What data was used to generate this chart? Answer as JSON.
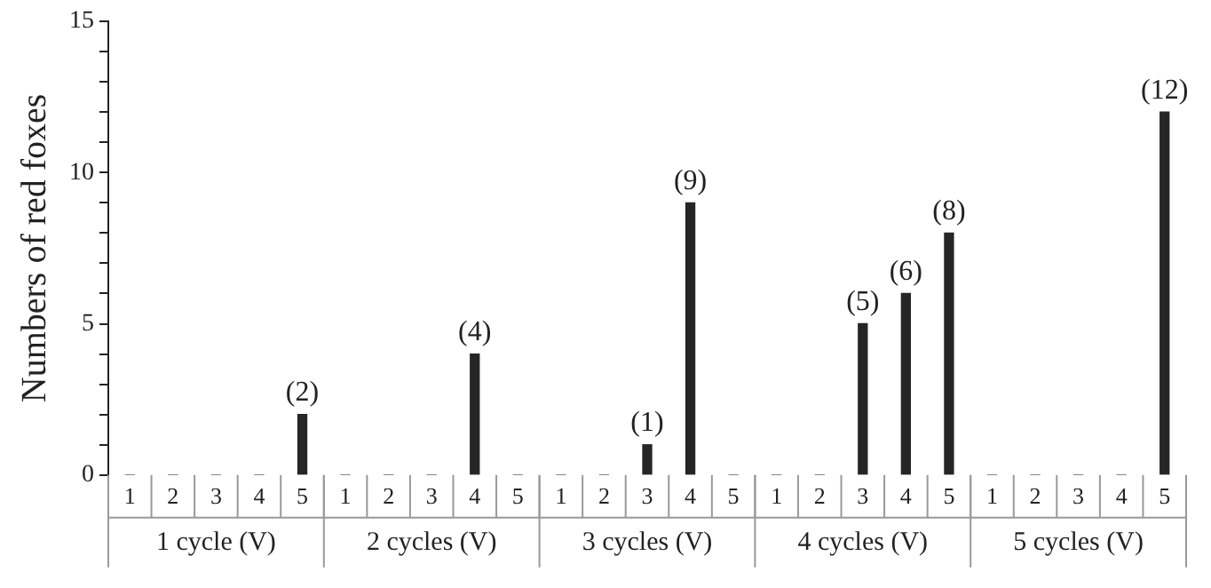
{
  "chart_data": {
    "type": "bar",
    "ylabel": "Numbers of red foxes",
    "categories": [
      "1",
      "2",
      "3",
      "4",
      "5",
      "1",
      "2",
      "3",
      "4",
      "5",
      "1",
      "2",
      "3",
      "4",
      "5",
      "1",
      "2",
      "3",
      "4",
      "5",
      "1",
      "2",
      "3",
      "4",
      "5"
    ],
    "values": [
      0,
      0,
      0,
      0,
      2,
      0,
      0,
      0,
      4,
      0,
      0,
      0,
      1,
      9,
      0,
      0,
      0,
      5,
      6,
      8,
      0,
      0,
      0,
      0,
      12
    ],
    "value_labels": [
      null,
      null,
      null,
      null,
      "(2)",
      null,
      null,
      null,
      "(4)",
      null,
      null,
      null,
      "(1)",
      "(9)",
      null,
      null,
      null,
      "(5)",
      "(6)",
      "(8)",
      null,
      null,
      null,
      null,
      "(12)"
    ],
    "color": "#262626",
    "ylim": [
      0,
      15
    ],
    "yticks": [
      0,
      {
        "value": 1,
        "label": null
      },
      {
        "value": 2,
        "label": null
      },
      {
        "value": 3,
        "label": null
      },
      {
        "value": 4,
        "label": null
      },
      5,
      {
        "value": 6,
        "label": null
      },
      {
        "value": 7,
        "label": null
      },
      {
        "value": 8,
        "label": null
      },
      {
        "value": 9,
        "label": null
      },
      10,
      {
        "value": 11,
        "label": null
      },
      {
        "value": 12,
        "label": null
      },
      {
        "value": 13,
        "label": null
      },
      {
        "value": 14,
        "label": null
      },
      15
    ],
    "annotations": [
      "1 cycle (V)",
      "2 cycles (V)",
      "3 cycles (V)",
      "4 cycles (V)",
      "5 cycles (V)"
    ],
    "grid": false,
    "legend": false
  }
}
